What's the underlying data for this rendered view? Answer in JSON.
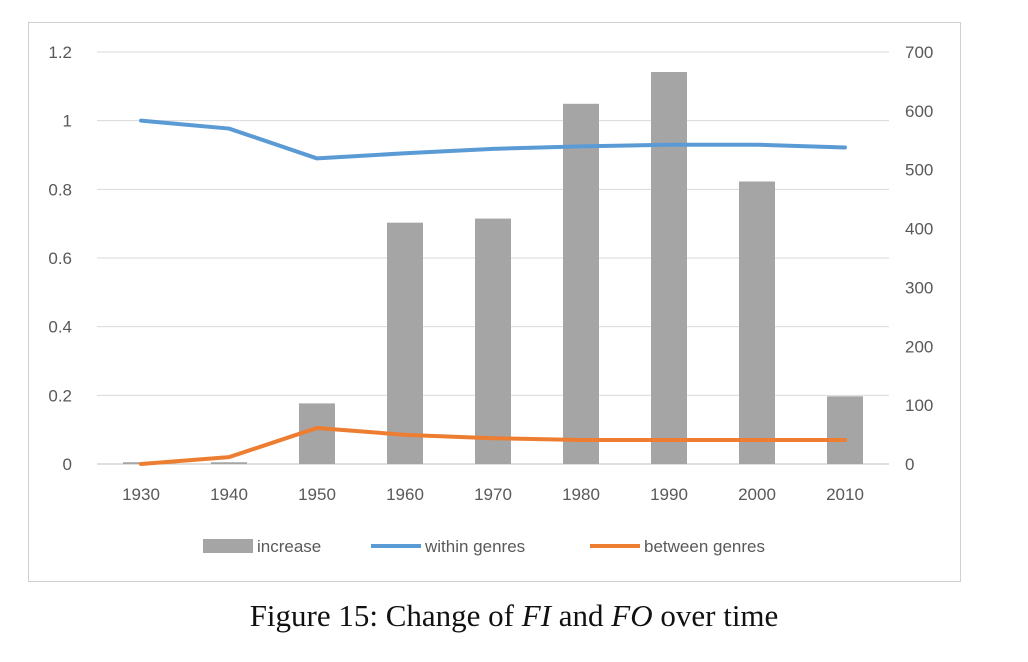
{
  "chart_data": {
    "type": "bar+line",
    "title": "",
    "categories": [
      "1930",
      "1940",
      "1950",
      "1960",
      "1970",
      "1980",
      "1990",
      "2000",
      "2010"
    ],
    "y_left": {
      "lim": [
        0,
        1.2
      ],
      "ticks": [
        "0",
        "0.2",
        "0.4",
        "0.6",
        "0.8",
        "1",
        "1.2"
      ]
    },
    "y_right": {
      "lim": [
        0,
        700
      ],
      "ticks": [
        "0",
        "100",
        "200",
        "300",
        "400",
        "500",
        "600",
        "700"
      ]
    },
    "grid": true,
    "legend_position": "bottom",
    "series": [
      {
        "name": "increase",
        "kind": "bar",
        "axis": "right",
        "color": "#a5a5a5",
        "values": [
          3,
          3,
          103,
          410,
          417,
          612,
          666,
          480,
          115
        ]
      },
      {
        "name": "within genres",
        "kind": "line",
        "axis": "left",
        "color": "#5b9bd5",
        "values": [
          1.0,
          0.977,
          0.89,
          0.905,
          0.918,
          0.925,
          0.93,
          0.93,
          0.922
        ]
      },
      {
        "name": "between genres",
        "kind": "line",
        "axis": "left",
        "color": "#ed7d31",
        "values": [
          0.0,
          0.02,
          0.105,
          0.085,
          0.075,
          0.07,
          0.07,
          0.07,
          0.07
        ]
      }
    ]
  },
  "caption": {
    "prefix": "Figure 15: Change of ",
    "term1": "FI",
    "middle": " and ",
    "term2": "FO",
    "suffix": " over time"
  }
}
